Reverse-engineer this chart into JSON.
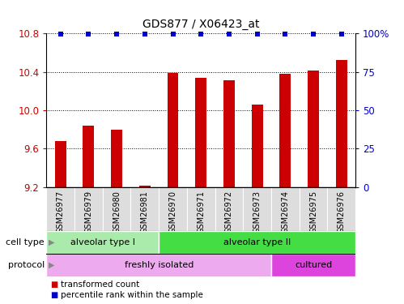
{
  "title": "GDS877 / X06423_at",
  "samples": [
    "GSM26977",
    "GSM26979",
    "GSM26980",
    "GSM26981",
    "GSM26970",
    "GSM26971",
    "GSM26972",
    "GSM26973",
    "GSM26974",
    "GSM26975",
    "GSM26976"
  ],
  "bar_values": [
    9.68,
    9.84,
    9.8,
    9.21,
    10.39,
    10.34,
    10.31,
    10.06,
    10.38,
    10.41,
    10.52
  ],
  "percentile_values": [
    100,
    100,
    100,
    100,
    100,
    100,
    100,
    100,
    100,
    100,
    100
  ],
  "ylim_left": [
    9.2,
    10.8
  ],
  "ylim_right": [
    0,
    100
  ],
  "yticks_left": [
    9.2,
    9.6,
    10.0,
    10.4,
    10.8
  ],
  "yticks_right": [
    0,
    25,
    50,
    75,
    100
  ],
  "bar_color": "#cc0000",
  "dot_color": "#0000cc",
  "cell_type_groups": [
    {
      "label": "alveolar type I",
      "start": 0,
      "end": 4,
      "color": "#aaeaaa"
    },
    {
      "label": "alveolar type II",
      "start": 4,
      "end": 11,
      "color": "#44dd44"
    }
  ],
  "protocol_groups": [
    {
      "label": "freshly isolated",
      "start": 0,
      "end": 8,
      "color": "#eeaaee"
    },
    {
      "label": "cultured",
      "start": 8,
      "end": 11,
      "color": "#dd44dd"
    }
  ],
  "cell_type_label": "cell type",
  "protocol_label": "protocol",
  "legend_items": [
    {
      "label": "transformed count",
      "color": "#cc0000"
    },
    {
      "label": "percentile rank within the sample",
      "color": "#0000cc"
    }
  ],
  "background_color": "#ffffff",
  "tick_label_color_left": "#cc0000",
  "tick_label_color_right": "#0000cc",
  "xtick_area_color": "#dddddd",
  "bar_width": 0.4
}
